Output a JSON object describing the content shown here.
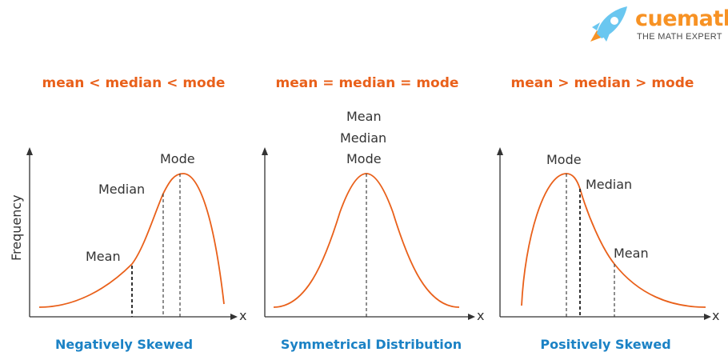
{
  "logo": {
    "word": "cuemath",
    "tagline": "THE MATH EXPERT"
  },
  "y_axis_label": "Frequency",
  "x_axis_symbol": "x",
  "colors": {
    "curve": "#e9601a",
    "condition": "#e9601a",
    "caption": "#1b82c5",
    "text": "#333333",
    "axis": "#333333",
    "logo_orange": "#f79224",
    "logo_blue": "#6ac7f0"
  },
  "panels": [
    {
      "condition": "mean < median < mode",
      "caption": "Negatively Skewed",
      "labels": {
        "mean": "Mean",
        "median": "Median",
        "mode": "Mode"
      }
    },
    {
      "condition": "mean = median = mode",
      "caption": "Symmetrical Distribution",
      "labels": {
        "mean": "Mean",
        "median": "Median",
        "mode": "Mode"
      }
    },
    {
      "condition": "mean > median > mode",
      "caption": "Positively Skewed",
      "labels": {
        "mean": "Mean",
        "median": "Median",
        "mode": "Mode"
      }
    }
  ]
}
